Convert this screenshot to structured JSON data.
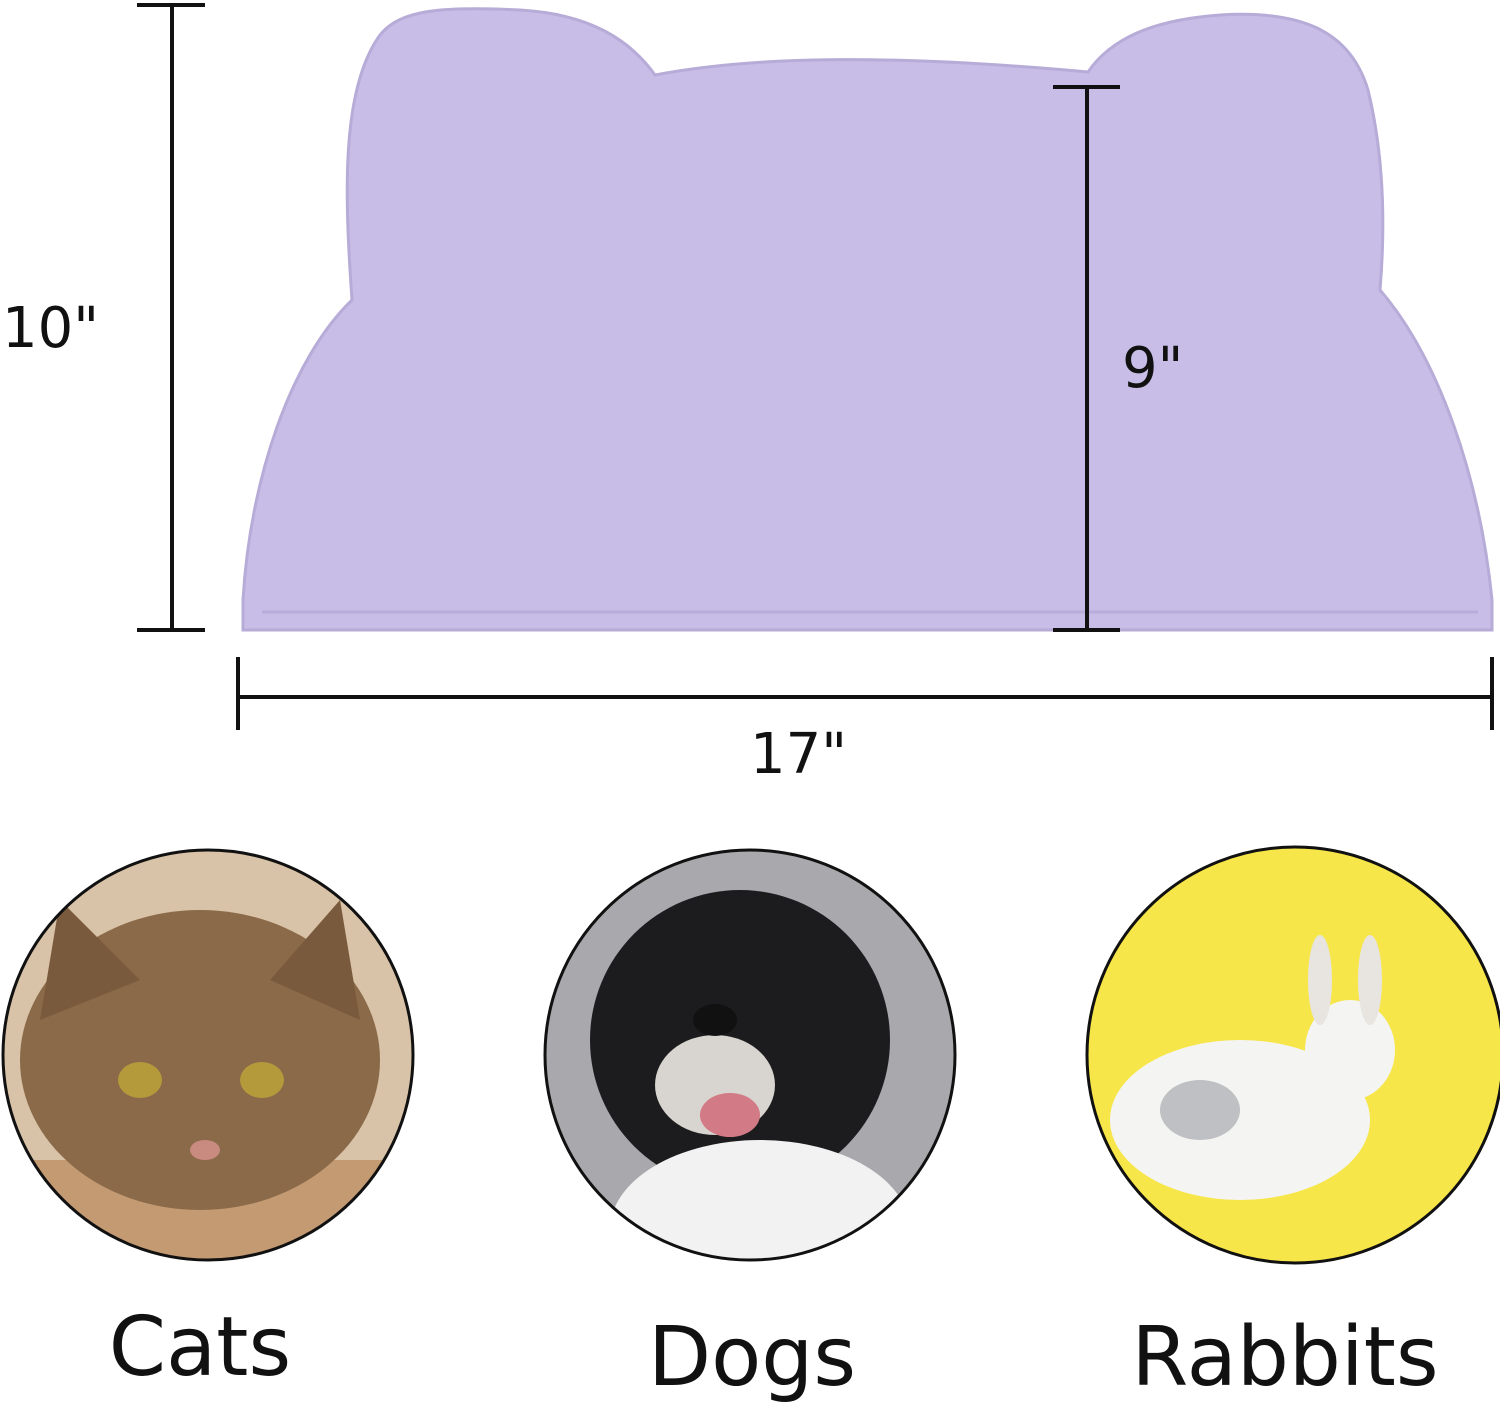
{
  "dimensions": {
    "height_outer": "10\"",
    "height_inner": "9\"",
    "width": "17\""
  },
  "mat_color": "#c8bde6",
  "pets": [
    {
      "label": "Cats",
      "background": "#d9c3a8"
    },
    {
      "label": "Dogs",
      "background": "#a9a9ad"
    },
    {
      "label": "Rabbits",
      "background": "#f7e64a"
    }
  ]
}
